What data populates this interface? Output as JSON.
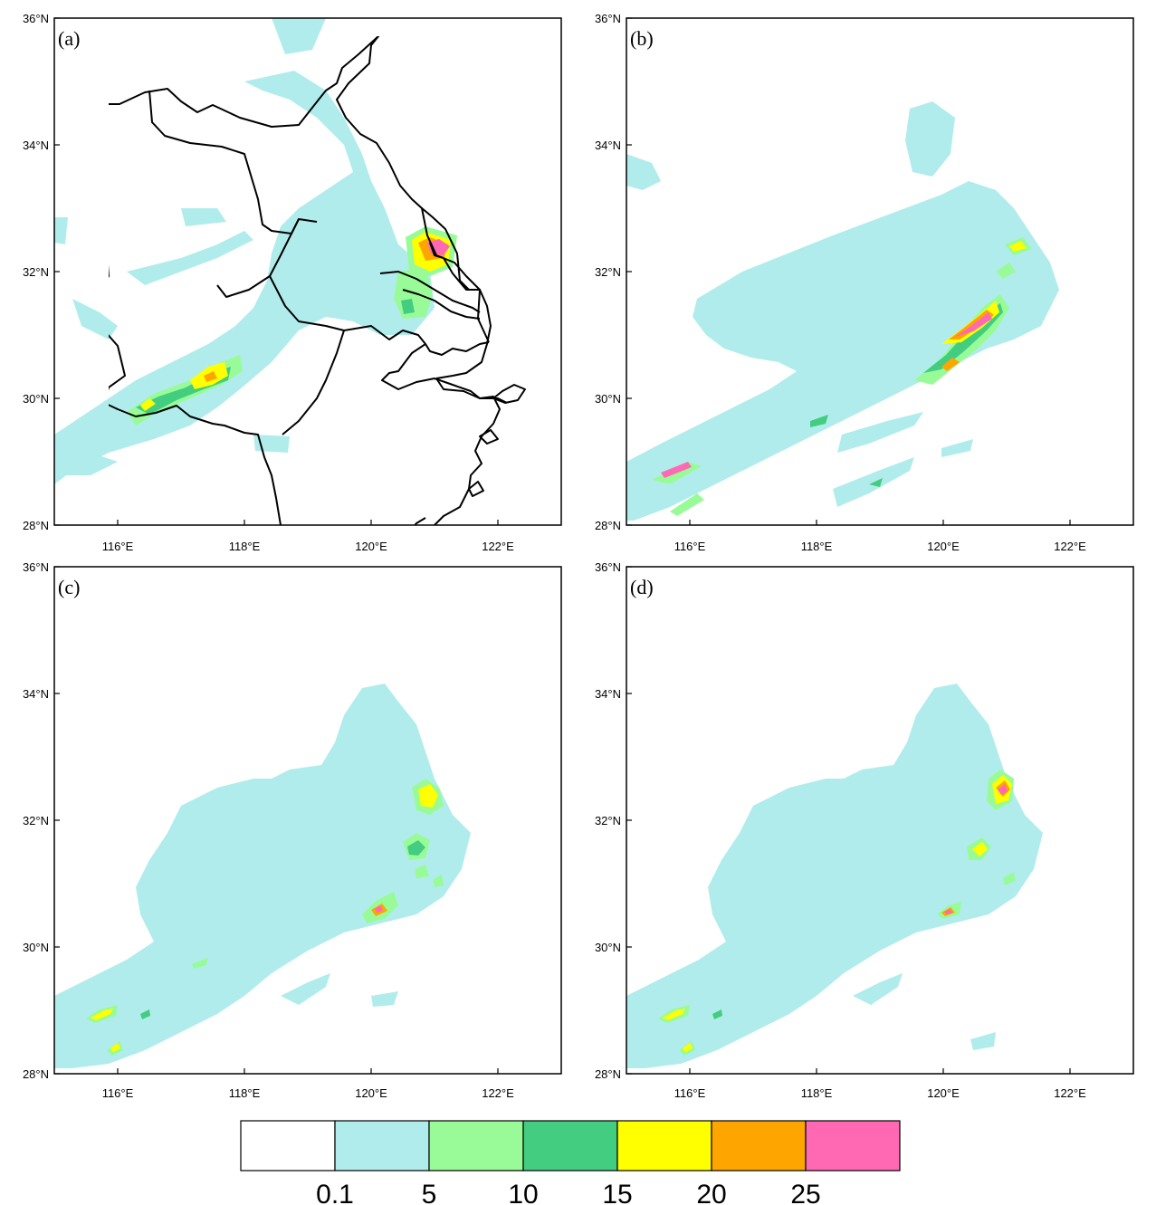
{
  "figure": {
    "panels": [
      {
        "tag": "(a)",
        "lat_labels": [
          "28°N",
          "30°N",
          "32°N",
          "34°N",
          "36°N"
        ],
        "lon_labels": [
          "116°E",
          "118°E",
          "120°E",
          "122°E"
        ]
      },
      {
        "tag": "(b)",
        "lat_labels": [
          "28°N",
          "30°N",
          "32°N",
          "34°N",
          "36°N"
        ],
        "lon_labels": [
          "116°E",
          "118°E",
          "120°E",
          "122°E"
        ]
      },
      {
        "tag": "(c)",
        "lat_labels": [
          "28°N",
          "30°N",
          "32°N",
          "34°N",
          "36°N"
        ],
        "lon_labels": [
          "116°E",
          "118°E",
          "120°E",
          "122°E"
        ]
      },
      {
        "tag": "(d)",
        "lat_labels": [
          "28°N",
          "30°N",
          "32°N",
          "34°N",
          "36°N"
        ],
        "lon_labels": [
          "116°E",
          "118°E",
          "120°E",
          "122°E"
        ]
      }
    ],
    "extent": {
      "lon": [
        115,
        123
      ],
      "lat": [
        28,
        36
      ]
    },
    "colorbar": {
      "labels": [
        "0.1",
        "5",
        "10",
        "15",
        "20",
        "25"
      ],
      "colors": [
        "#ffffff",
        "#b1ecec",
        "#98fb98",
        "#43cd80",
        "#ffff00",
        "#ffa500",
        "#ff69b4"
      ]
    }
  }
}
